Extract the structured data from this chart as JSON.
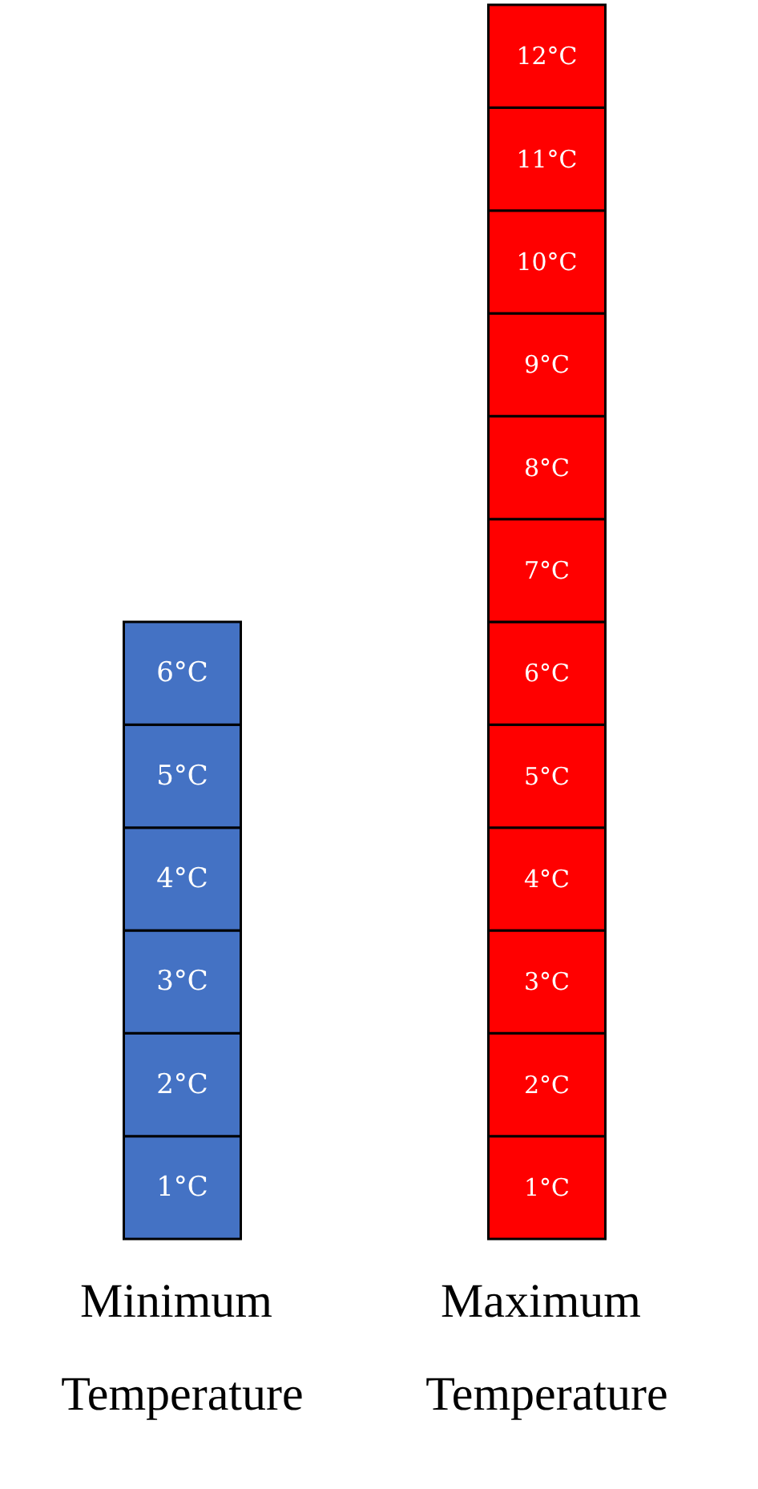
{
  "chart_data": {
    "type": "bar",
    "categories": [
      "Minimum Temperature",
      "Maximum Temperature"
    ],
    "ylim": [
      0.5,
      12.5
    ],
    "yticks": [
      {
        "value": 1,
        "label": "1°C"
      },
      {
        "value": 2,
        "label": "2°C"
      },
      {
        "value": 3,
        "label": "3°C"
      },
      {
        "value": 4,
        "label": "4°C"
      },
      {
        "value": 5,
        "label": "5°C"
      },
      {
        "value": 6,
        "label": "6°C"
      }
    ],
    "y2lim": [
      0.5,
      12.5
    ],
    "y2ticks": [
      {
        "value": 1,
        "label": "1°C"
      },
      {
        "value": 2,
        "label": "2°C"
      },
      {
        "value": 3,
        "label": "3°C"
      },
      {
        "value": 4,
        "label": "4°C"
      },
      {
        "value": 5,
        "label": "5°C"
      },
      {
        "value": 6,
        "label": "6°C"
      },
      {
        "value": 7,
        "label": "7°C"
      },
      {
        "value": 8,
        "label": "8°C"
      },
      {
        "value": 9,
        "label": "9°C"
      },
      {
        "value": 10,
        "label": "10°C"
      },
      {
        "value": 11,
        "label": "11°C"
      },
      {
        "value": 12,
        "label": "12°C"
      }
    ],
    "series": [
      {
        "values": [
          1,
          1
        ],
        "base": [
          0.5,
          0.5
        ],
        "colors": [
          "#4472c4",
          "#ff0000"
        ]
      },
      {
        "values": [
          1,
          1
        ],
        "base": [
          1.5,
          1.5
        ],
        "colors": [
          "#4472c4",
          "#ff0000"
        ]
      },
      {
        "values": [
          1,
          1
        ],
        "base": [
          2.5,
          2.5
        ],
        "colors": [
          "#4472c4",
          "#ff0000"
        ]
      },
      {
        "values": [
          1,
          1
        ],
        "base": [
          3.5,
          3.5
        ],
        "colors": [
          "#4472c4",
          "#ff0000"
        ]
      },
      {
        "values": [
          1,
          1
        ],
        "base": [
          4.5,
          4.5
        ],
        "colors": [
          "#4472c4",
          "#ff0000"
        ]
      },
      {
        "values": [
          1,
          1
        ],
        "base": [
          5.5,
          5.5
        ],
        "colors": [
          "#4472c4",
          "#ff0000"
        ]
      },
      {
        "values": [
          null,
          1
        ],
        "base": [
          null,
          6.5
        ],
        "colors": [
          null,
          "#ff0000"
        ]
      },
      {
        "values": [
          null,
          1
        ],
        "base": [
          null,
          7.5
        ],
        "colors": [
          null,
          "#ff0000"
        ]
      },
      {
        "values": [
          null,
          1
        ],
        "base": [
          null,
          8.5
        ],
        "colors": [
          null,
          "#ff0000"
        ]
      },
      {
        "values": [
          null,
          1
        ],
        "base": [
          null,
          9.5
        ],
        "colors": [
          null,
          "#ff0000"
        ]
      },
      {
        "values": [
          null,
          1
        ],
        "base": [
          null,
          10.5
        ],
        "colors": [
          null,
          "#ff0000"
        ]
      },
      {
        "values": [
          null,
          1
        ],
        "base": [
          null,
          11.5
        ],
        "colors": [
          null,
          "#ff0000"
        ]
      }
    ]
  }
}
